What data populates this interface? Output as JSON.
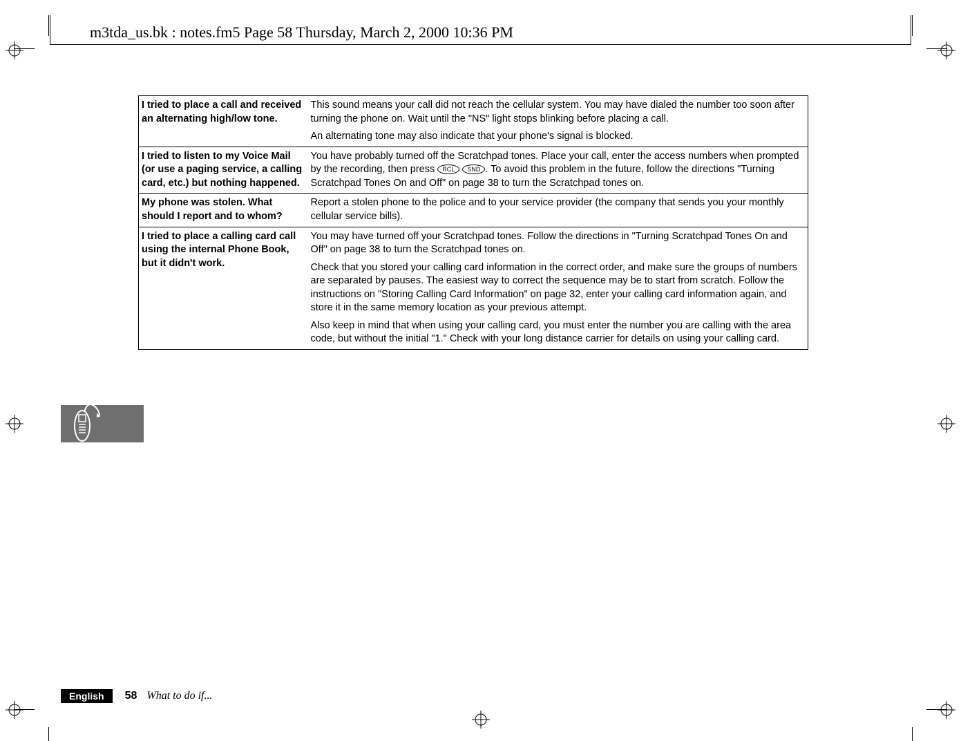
{
  "header": "m3tda_us.bk : notes.fm5  Page 58  Thursday, March 2, 2000  10:36 PM",
  "rows": [
    {
      "left": "I tried to place a call and received an alternating high/low tone.",
      "right": [
        "This sound means your call did not reach the cellular system. You may have dialed the number too soon after turning the phone on. Wait until the \"NS\" light stops blinking before placing a call.",
        "An alternating tone may also indicate that your phone's signal is blocked."
      ]
    },
    {
      "left": "I tried to listen to my Voice Mail (or use a paging service, a calling card, etc.) but nothing happened.",
      "right": [
        "You have probably turned off the Scratchpad tones. Place your call, enter the access numbers when prompted by the recording, then press {RCL} {SND}. To avoid this problem in the future, follow the directions \"Turning Scratchpad Tones On and Off\" on page 38 to turn the Scratchpad tones on."
      ]
    },
    {
      "left": "My phone was stolen. What should I report and to whom?",
      "right": [
        "Report a stolen phone to the police and to your service provider (the company that sends you your monthly cellular service bills)."
      ]
    },
    {
      "left": "I tried to place a calling card call using the internal Phone Book, but it didn't work.",
      "right": [
        "You may have turned off your Scratchpad tones. Follow the directions in \"Turning Scratchpad Tones On and Off\" on page 38 to turn the Scratchpad tones on.",
        "Check that you stored your calling card information in the correct order, and make sure the groups of numbers are separated by pauses. The easiest way to correct the sequence may be to start from scratch. Follow the instructions on \"Storing Calling Card Information\" on page 32, enter your calling card information again, and store it in the same memory location as your previous attempt.",
        "Also keep in mind that when using your calling card, you must enter the number you are calling with the area code, but without the initial \"1.\" Check with your long distance carrier for details on using your calling card."
      ]
    }
  ],
  "keys": {
    "rcl": "RCL",
    "snd": "SND"
  },
  "footer": {
    "lang": "English",
    "page": "58",
    "title": "What to do if..."
  },
  "colors": {
    "text": "#000000",
    "bg": "#ffffff",
    "tab": "#6f6f6f",
    "footerBlack": "#000000"
  }
}
